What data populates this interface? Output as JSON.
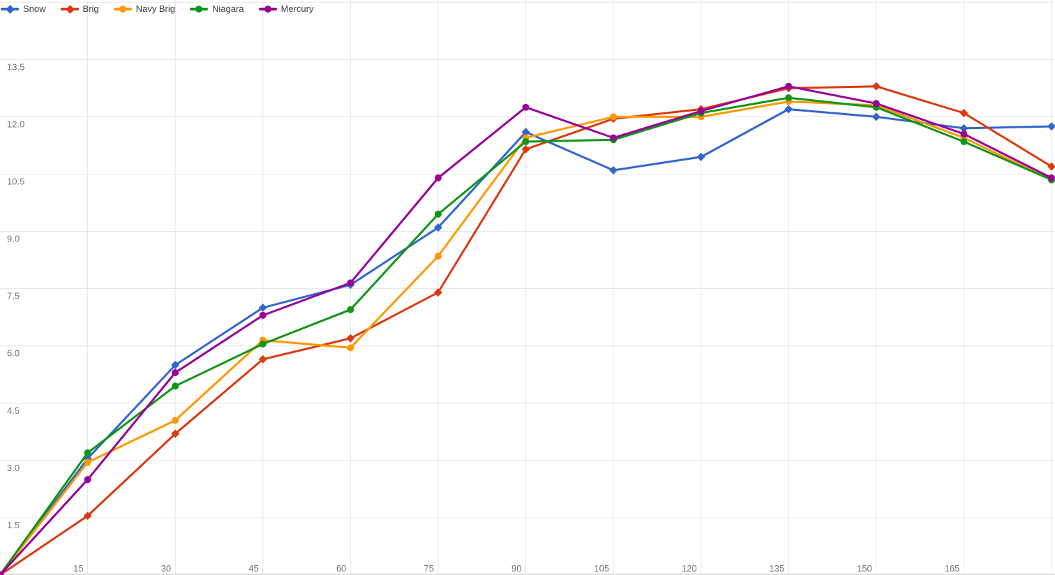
{
  "chart_data": {
    "type": "line",
    "title": "",
    "xlabel": "",
    "ylabel": "",
    "x": [
      0,
      15,
      30,
      45,
      60,
      75,
      90,
      105,
      120,
      135,
      150,
      165,
      180
    ],
    "series": [
      {
        "name": "Snow",
        "color": "#3366CC",
        "marker": "diamond",
        "values": [
          0,
          3.05,
          5.5,
          7.0,
          7.6,
          9.1,
          11.6,
          10.6,
          10.95,
          12.2,
          12.0,
          11.7,
          11.75
        ]
      },
      {
        "name": "Brig",
        "color": "#DC3912",
        "marker": "diamond",
        "values": [
          0,
          1.55,
          3.7,
          5.65,
          6.2,
          7.4,
          11.15,
          11.95,
          12.2,
          12.75,
          12.8,
          12.1,
          10.7
        ]
      },
      {
        "name": "Navy Brig",
        "color": "#FF9900",
        "marker": "circle",
        "values": [
          0,
          2.95,
          4.05,
          6.15,
          5.95,
          8.35,
          11.45,
          12.0,
          12.0,
          12.4,
          12.3,
          11.45,
          10.35
        ]
      },
      {
        "name": "Niagara",
        "color": "#109618",
        "marker": "circle",
        "values": [
          0,
          3.2,
          4.95,
          6.05,
          6.95,
          9.45,
          11.35,
          11.4,
          12.1,
          12.5,
          12.25,
          11.35,
          10.35
        ]
      },
      {
        "name": "Mercury",
        "color": "#990099",
        "marker": "circle",
        "values": [
          0,
          2.5,
          5.3,
          6.8,
          7.65,
          10.4,
          12.25,
          11.45,
          12.15,
          12.8,
          12.35,
          11.55,
          10.4
        ]
      }
    ],
    "xlim": [
      0,
      180.6
    ],
    "ylim": [
      0,
      15.06
    ],
    "x_gridlines": [
      15,
      30,
      45,
      60,
      75,
      90,
      105,
      120,
      135,
      150,
      165,
      180
    ],
    "y_gridlines": [
      1.5,
      3.0,
      4.5,
      6.0,
      7.5,
      9.0,
      10.5,
      12.0,
      13.5,
      15.0
    ],
    "x_tick_labels": [
      "15",
      "30",
      "45",
      "60",
      "75",
      "90",
      "105",
      "120",
      "135",
      "150",
      "165"
    ],
    "y_tick_labels": [
      "1.5",
      "3.0",
      "4.5",
      "6.0",
      "7.5",
      "9.0",
      "10.5",
      "12.0",
      "13.5"
    ],
    "grid": true,
    "legend_position": "top-left",
    "colors": {
      "background": "#FFFFFF",
      "gridline": "#E6E6E6",
      "baseline": "#BDBDBD",
      "tick_label": "#757575",
      "legend_text": "#3C4043"
    }
  }
}
